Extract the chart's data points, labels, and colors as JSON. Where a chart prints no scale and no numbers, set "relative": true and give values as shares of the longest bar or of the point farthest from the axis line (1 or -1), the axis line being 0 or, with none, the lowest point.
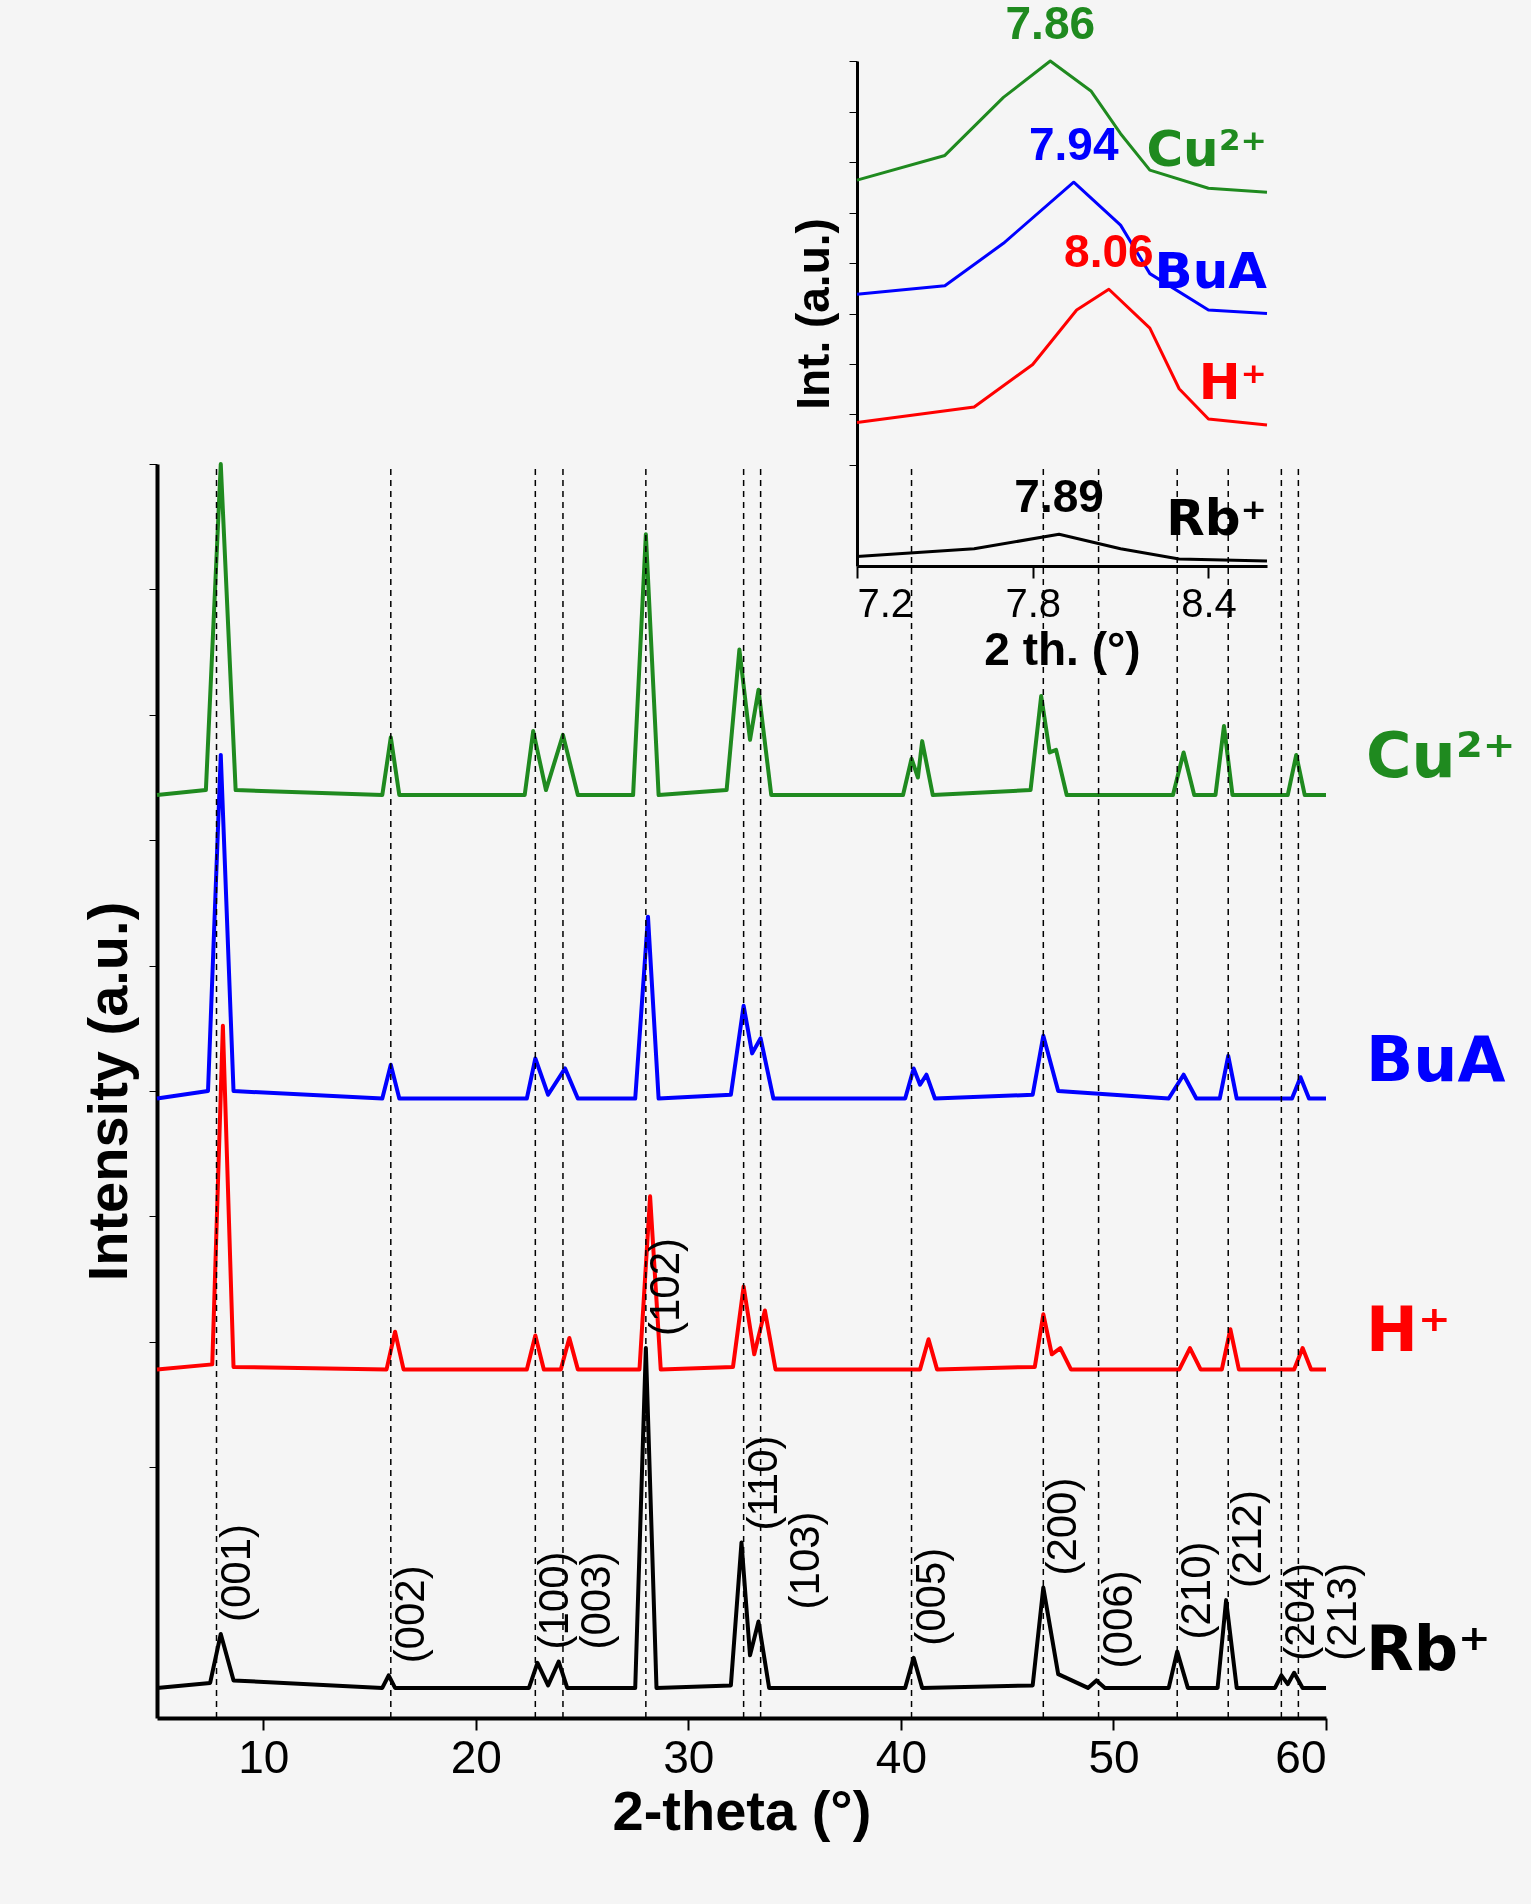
{
  "chart_data": [
    {
      "type": "line",
      "xlabel": "2-theta (°)",
      "ylabel": "Intensity (a.u.)",
      "relative": true,
      "tick_labels": "x",
      "grid": false,
      "legend": false,
      "xlim": [
        5,
        60
      ],
      "xticks": [
        10,
        20,
        30,
        40,
        50,
        60
      ],
      "series": [
        {
          "name": "Cu²⁺",
          "color": "#1f8a1f",
          "x": [
            5,
            7.3,
            8.0,
            8.7,
            15.6,
            16.0,
            16.4,
            22.3,
            22.7,
            23.3,
            24.1,
            24.8,
            27.4,
            28.0,
            28.6,
            31.8,
            32.4,
            32.9,
            33.3,
            33.9,
            40.1,
            40.5,
            40.8,
            41.0,
            41.5,
            46.1,
            46.6,
            47.0,
            47.3,
            47.8,
            52.8,
            53.3,
            53.8,
            54.8,
            55.2,
            55.6,
            58.2,
            58.6,
            59.0,
            60
          ],
          "values": [
            0.736,
            0.74,
            1.0,
            0.74,
            0.736,
            0.782,
            0.736,
            0.736,
            0.787,
            0.74,
            0.784,
            0.736,
            0.736,
            0.944,
            0.736,
            0.74,
            0.852,
            0.78,
            0.82,
            0.736,
            0.736,
            0.765,
            0.75,
            0.779,
            0.736,
            0.74,
            0.815,
            0.77,
            0.772,
            0.736,
            0.736,
            0.77,
            0.736,
            0.736,
            0.791,
            0.736,
            0.736,
            0.768,
            0.736,
            0.736
          ]
        },
        {
          "name": "BuA",
          "color": "#0000ff",
          "x": [
            5,
            7.4,
            8.0,
            8.6,
            15.6,
            16.0,
            16.4,
            22.4,
            22.8,
            23.4,
            24.2,
            24.8,
            27.5,
            28.1,
            28.6,
            32.0,
            32.6,
            33.0,
            33.4,
            34.0,
            40.2,
            40.6,
            40.9,
            41.2,
            41.6,
            46.2,
            46.7,
            47.4,
            52.6,
            53.3,
            53.9,
            55.0,
            55.4,
            55.8,
            58.4,
            58.8,
            59.2,
            60
          ],
          "values": [
            0.494,
            0.5,
            0.768,
            0.5,
            0.494,
            0.521,
            0.494,
            0.494,
            0.526,
            0.497,
            0.518,
            0.494,
            0.494,
            0.639,
            0.494,
            0.497,
            0.568,
            0.53,
            0.542,
            0.494,
            0.494,
            0.518,
            0.505,
            0.513,
            0.494,
            0.497,
            0.544,
            0.5,
            0.494,
            0.513,
            0.494,
            0.494,
            0.528,
            0.494,
            0.494,
            0.511,
            0.494,
            0.494
          ]
        },
        {
          "name": "H⁺",
          "color": "#ff0000",
          "x": [
            5,
            7.6,
            8.1,
            8.6,
            15.8,
            16.2,
            16.6,
            22.4,
            22.8,
            23.2,
            24.0,
            24.4,
            24.8,
            27.7,
            28.2,
            28.7,
            32.1,
            32.6,
            33.1,
            33.6,
            34.1,
            40.9,
            41.3,
            41.7,
            46.3,
            46.7,
            47.1,
            47.5,
            48.0,
            53.1,
            53.6,
            54.1,
            55.1,
            55.5,
            55.9,
            58.5,
            58.9,
            59.3,
            60
          ],
          "values": [
            0.278,
            0.282,
            0.552,
            0.28,
            0.278,
            0.308,
            0.278,
            0.278,
            0.305,
            0.278,
            0.278,
            0.303,
            0.278,
            0.278,
            0.416,
            0.278,
            0.28,
            0.344,
            0.29,
            0.325,
            0.278,
            0.278,
            0.302,
            0.278,
            0.28,
            0.322,
            0.29,
            0.295,
            0.278,
            0.278,
            0.295,
            0.278,
            0.278,
            0.31,
            0.278,
            0.278,
            0.295,
            0.278,
            0.278
          ]
        },
        {
          "name": "Rb⁺",
          "color": "#000000",
          "x": [
            5,
            7.5,
            8.0,
            8.6,
            15.6,
            15.9,
            16.2,
            22.5,
            22.9,
            23.4,
            23.9,
            24.3,
            27.5,
            28.0,
            28.5,
            32.0,
            32.5,
            32.9,
            33.3,
            33.8,
            40.2,
            40.6,
            41.0,
            46.2,
            46.7,
            47.4,
            48.8,
            49.2,
            49.6,
            52.6,
            53.0,
            53.5,
            54.9,
            55.3,
            55.8,
            57.6,
            57.9,
            58.2,
            58.5,
            58.9,
            60
          ],
          "values": [
            0.024,
            0.028,
            0.067,
            0.03,
            0.024,
            0.034,
            0.024,
            0.024,
            0.044,
            0.026,
            0.045,
            0.024,
            0.024,
            0.295,
            0.024,
            0.026,
            0.14,
            0.05,
            0.077,
            0.024,
            0.024,
            0.048,
            0.024,
            0.026,
            0.104,
            0.035,
            0.024,
            0.03,
            0.024,
            0.024,
            0.053,
            0.024,
            0.024,
            0.094,
            0.024,
            0.024,
            0.034,
            0.027,
            0.036,
            0.024,
            0.024
          ]
        }
      ],
      "ref_lines": [
        {
          "axis": "x",
          "value": 7.8,
          "color": "#000000",
          "line_style": "dashed"
        },
        {
          "axis": "x",
          "value": 16.0,
          "color": "#000000",
          "line_style": "dashed"
        },
        {
          "axis": "x",
          "value": 22.8,
          "color": "#000000",
          "line_style": "dashed"
        },
        {
          "axis": "x",
          "value": 24.1,
          "color": "#000000",
          "line_style": "dashed"
        },
        {
          "axis": "x",
          "value": 28.0,
          "color": "#000000",
          "line_style": "dashed"
        },
        {
          "axis": "x",
          "value": 32.6,
          "color": "#000000",
          "line_style": "dashed"
        },
        {
          "axis": "x",
          "value": 33.4,
          "color": "#000000",
          "line_style": "dashed"
        },
        {
          "axis": "x",
          "value": 40.5,
          "color": "#000000",
          "line_style": "dashed"
        },
        {
          "axis": "x",
          "value": 46.7,
          "color": "#000000",
          "line_style": "dashed"
        },
        {
          "axis": "x",
          "value": 49.3,
          "color": "#000000",
          "line_style": "dashed"
        },
        {
          "axis": "x",
          "value": 53.0,
          "color": "#000000",
          "line_style": "dashed"
        },
        {
          "axis": "x",
          "value": 55.4,
          "color": "#000000",
          "line_style": "dashed"
        },
        {
          "axis": "x",
          "value": 57.9,
          "color": "#000000",
          "line_style": "dashed"
        },
        {
          "axis": "x",
          "value": 58.7,
          "color": "#000000",
          "line_style": "dashed"
        }
      ],
      "annotations": [
        "(001)",
        "(002)",
        "(100)",
        "(003)",
        "(102)",
        "(110)",
        "(103)",
        "(005)",
        "(200)",
        "(006)",
        "(210)",
        "(212)",
        "(204)",
        "(213)"
      ]
    },
    {
      "type": "line",
      "xlabel": "2 th. (°)",
      "ylabel": "Int. (a.u.)",
      "relative": true,
      "tick_labels": "x",
      "grid": false,
      "legend": false,
      "xlim": [
        7.2,
        8.6
      ],
      "xticks": [
        7.2,
        7.8,
        8.4
      ],
      "series": [
        {
          "name": "Cu²⁺",
          "color": "#1f8a1f",
          "x": [
            7.2,
            7.5,
            7.7,
            7.86,
            8.0,
            8.1,
            8.2,
            8.4,
            8.6
          ],
          "values": [
            0.764,
            0.813,
            0.928,
            1.0,
            0.94,
            0.856,
            0.784,
            0.748,
            0.74
          ]
        },
        {
          "name": "BuA",
          "color": "#0000ff",
          "x": [
            7.2,
            7.5,
            7.7,
            7.94,
            8.1,
            8.2,
            8.4,
            8.6
          ],
          "values": [
            0.538,
            0.555,
            0.639,
            0.76,
            0.675,
            0.579,
            0.507,
            0.5
          ]
        },
        {
          "name": "H⁺",
          "color": "#ff0000",
          "x": [
            7.2,
            7.6,
            7.8,
            7.95,
            8.06,
            8.2,
            8.3,
            8.4,
            8.6
          ],
          "values": [
            0.284,
            0.315,
            0.399,
            0.507,
            0.548,
            0.471,
            0.351,
            0.291,
            0.279
          ]
        },
        {
          "name": "Rb⁺",
          "color": "#000000",
          "x": [
            7.2,
            7.6,
            7.89,
            8.1,
            8.3,
            8.6
          ],
          "values": [
            0.019,
            0.034,
            0.063,
            0.034,
            0.014,
            0.01
          ]
        }
      ],
      "annotations": [
        {
          "text": "7.86",
          "x": 7.86,
          "y": 1.0
        },
        {
          "text": "7.94",
          "x": 7.94,
          "y": 0.76
        },
        {
          "text": "8.06",
          "x": 8.06,
          "y": 0.548
        },
        {
          "text": "7.89",
          "x": 7.89,
          "y": 0.063
        }
      ]
    }
  ]
}
